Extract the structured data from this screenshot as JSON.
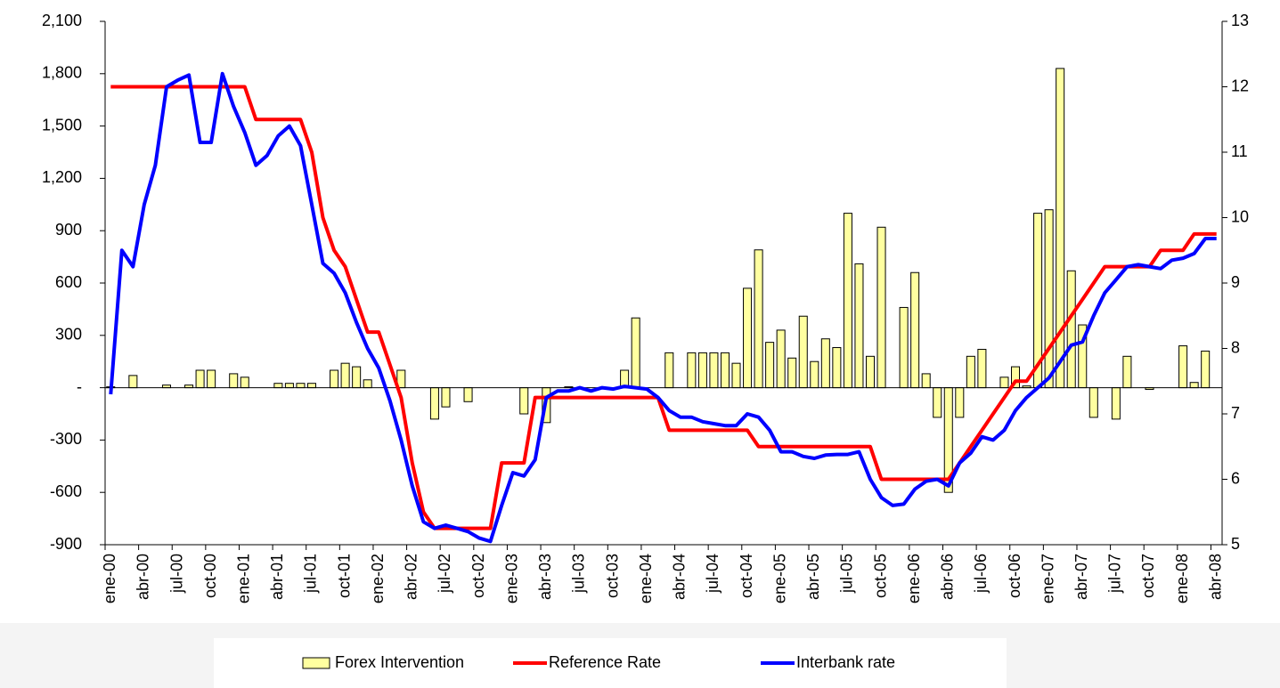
{
  "chart_data": {
    "type": "bar",
    "categories": [
      "ene-00",
      null,
      null,
      "abr-00",
      null,
      null,
      "jul-00",
      null,
      null,
      "oct-00",
      null,
      null,
      "ene-01",
      null,
      null,
      "abr-01",
      null,
      null,
      "jul-01",
      null,
      null,
      "oct-01",
      null,
      null,
      "ene-02",
      null,
      null,
      "abr-02",
      null,
      null,
      "jul-02",
      null,
      null,
      "oct-02",
      null,
      null,
      "ene-03",
      null,
      null,
      "abr-03",
      null,
      null,
      "jul-03",
      null,
      null,
      "oct-03",
      null,
      null,
      "ene-04",
      null,
      null,
      "abr-04",
      null,
      null,
      "jul-04",
      null,
      null,
      "oct-04",
      null,
      null,
      "ene-05",
      null,
      null,
      "abr-05",
      null,
      null,
      "jul-05",
      null,
      null,
      "oct-05",
      null,
      null,
      "ene-06",
      null,
      null,
      "abr-06",
      null,
      null,
      "jul-06",
      null,
      null,
      "oct-06",
      null,
      null,
      "ene-07",
      null,
      null,
      "abr-07",
      null,
      null,
      "jul-07",
      null,
      null,
      "oct-07",
      null,
      null,
      "ene-08",
      null,
      null,
      "abr-08"
    ],
    "series": [
      {
        "name": "Forex Intervention",
        "type": "bar",
        "color": "#ffffa0",
        "values": [
          5,
          null,
          70,
          null,
          null,
          15,
          null,
          15,
          100,
          100,
          null,
          80,
          60,
          null,
          null,
          25,
          25,
          25,
          25,
          null,
          100,
          140,
          120,
          45,
          null,
          null,
          100,
          null,
          null,
          -180,
          -110,
          null,
          -80,
          null,
          null,
          null,
          null,
          -150,
          null,
          -200,
          null,
          5,
          null,
          null,
          null,
          null,
          100,
          400,
          null,
          null,
          200,
          null,
          200,
          200,
          200,
          200,
          140,
          570,
          790,
          260,
          330,
          170,
          410,
          150,
          280,
          230,
          1000,
          710,
          180,
          920,
          null,
          460,
          660,
          80,
          -170,
          -600,
          -170,
          180,
          220,
          null,
          60,
          120,
          10,
          1000,
          1020,
          1830,
          670,
          360,
          -170,
          null,
          -180,
          180,
          null,
          -10,
          null,
          null,
          240,
          30,
          210,
          null
        ]
      },
      {
        "name": "Reference Rate",
        "type": "line",
        "axis": "y2",
        "color": "#ff0000",
        "values": [
          12,
          12,
          12,
          12,
          12,
          12,
          12,
          12,
          12,
          12,
          12,
          12,
          12,
          11.5,
          11.5,
          11.5,
          11.5,
          11.5,
          11,
          10,
          9.5,
          9.25,
          8.75,
          8.25,
          8.25,
          7.75,
          7.25,
          6.25,
          5.5,
          5.25,
          5.25,
          5.25,
          5.25,
          5.25,
          5.25,
          6.25,
          6.25,
          6.25,
          7.25,
          7.25,
          7.25,
          7.25,
          7.25,
          7.25,
          7.25,
          7.25,
          7.25,
          7.25,
          7.25,
          7.25,
          6.75,
          6.75,
          6.75,
          6.75,
          6.75,
          6.75,
          6.75,
          6.75,
          6.5,
          6.5,
          6.5,
          6.5,
          6.5,
          6.5,
          6.5,
          6.5,
          6.5,
          6.5,
          6.5,
          6.0,
          6.0,
          6.0,
          6.0,
          6.0,
          6.0,
          6.0,
          6.25,
          6.5,
          6.75,
          7.0,
          7.25,
          7.5,
          7.5,
          7.75,
          8.0,
          8.25,
          8.5,
          8.75,
          9.0,
          9.25,
          9.25,
          9.25,
          9.25,
          9.25,
          9.5,
          9.5,
          9.5,
          9.75,
          9.75,
          9.75
        ]
      },
      {
        "name": "Interbank rate",
        "type": "line",
        "axis": "y2",
        "color": "#0000ff",
        "values": [
          7.3,
          9.5,
          9.25,
          10.2,
          10.8,
          12.0,
          12.1,
          12.18,
          11.15,
          11.15,
          12.2,
          11.7,
          11.3,
          10.8,
          10.95,
          11.25,
          11.4,
          11.1,
          10.2,
          9.3,
          9.15,
          8.85,
          8.4,
          8.0,
          7.7,
          7.2,
          6.6,
          5.9,
          5.35,
          5.25,
          5.3,
          5.25,
          5.2,
          5.1,
          5.05,
          5.6,
          6.1,
          6.05,
          6.3,
          7.25,
          7.35,
          7.35,
          7.4,
          7.35,
          7.4,
          7.38,
          7.42,
          7.4,
          7.38,
          7.25,
          7.05,
          6.95,
          6.95,
          6.88,
          6.85,
          6.82,
          6.82,
          7.0,
          6.95,
          6.75,
          6.42,
          6.42,
          6.35,
          6.32,
          6.37,
          6.38,
          6.38,
          6.42,
          6.0,
          5.72,
          5.6,
          5.62,
          5.85,
          5.97,
          6.0,
          5.9,
          6.25,
          6.4,
          6.65,
          6.6,
          6.75,
          7.05,
          7.25,
          7.4,
          7.55,
          7.8,
          8.05,
          8.1,
          8.5,
          8.85,
          9.05,
          9.25,
          9.28,
          9.25,
          9.22,
          9.35,
          9.38,
          9.45,
          9.68,
          9.68
        ]
      }
    ],
    "ylim": [
      -900,
      2100
    ],
    "yticks": [
      {
        "value": 2100,
        "label": "2,100"
      },
      {
        "value": 1800,
        "label": "1,800"
      },
      {
        "value": 1500,
        "label": "1,500"
      },
      {
        "value": 1200,
        "label": "1,200"
      },
      900,
      600,
      300,
      {
        "value": 0,
        "label": "-"
      },
      -300,
      -600,
      -900
    ],
    "y2lim": [
      5,
      13
    ],
    "y2ticks": [
      5,
      6,
      7,
      8,
      9,
      10,
      11,
      12,
      13
    ],
    "grid": false,
    "legend": "bottom"
  }
}
